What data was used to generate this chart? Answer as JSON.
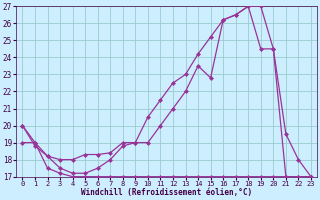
{
  "xlabel": "Windchill (Refroidissement éolien,°C)",
  "background_color": "#cceeff",
  "grid_color": "#99cccc",
  "line_color": "#993399",
  "xlim": [
    -0.5,
    23.5
  ],
  "ylim": [
    17,
    27
  ],
  "xticks": [
    0,
    1,
    2,
    3,
    4,
    5,
    6,
    7,
    8,
    9,
    10,
    11,
    12,
    13,
    14,
    15,
    16,
    17,
    18,
    19,
    20,
    21,
    22,
    23
  ],
  "yticks": [
    17,
    18,
    19,
    20,
    21,
    22,
    23,
    24,
    25,
    26,
    27
  ],
  "series1_x": [
    0,
    1,
    2,
    3,
    4,
    5,
    6,
    7,
    8,
    9,
    10,
    11,
    12,
    13,
    14,
    15,
    16,
    17,
    18,
    19,
    20,
    21,
    22,
    23
  ],
  "series1_y": [
    20.0,
    19.0,
    18.2,
    18.0,
    18.0,
    18.3,
    18.3,
    18.4,
    19.0,
    19.0,
    20.5,
    21.5,
    22.5,
    23.0,
    24.2,
    25.2,
    26.2,
    26.5,
    27.0,
    27.0,
    24.5,
    19.5,
    18.0,
    17.0
  ],
  "series2_x": [
    0,
    1,
    2,
    3,
    4,
    5,
    6,
    7,
    8,
    9,
    10,
    11,
    12,
    13,
    14,
    15,
    16,
    17,
    18,
    19,
    20,
    21,
    22,
    23
  ],
  "series2_y": [
    20.0,
    18.8,
    18.2,
    17.5,
    17.2,
    17.2,
    17.5,
    18.0,
    18.8,
    19.0,
    19.0,
    20.0,
    21.0,
    22.0,
    23.5,
    22.8,
    26.2,
    26.5,
    27.0,
    24.5,
    24.5,
    17.0,
    17.0,
    17.0
  ],
  "series3_x": [
    0,
    1,
    2,
    3,
    4,
    5,
    6,
    7,
    8,
    9,
    10,
    11,
    12,
    13,
    14,
    15,
    16,
    17,
    18,
    19,
    20,
    21,
    22,
    23
  ],
  "series3_y": [
    19.0,
    19.0,
    17.5,
    17.2,
    17.0,
    17.0,
    17.0,
    17.0,
    17.0,
    17.0,
    17.0,
    17.0,
    17.0,
    17.0,
    17.0,
    17.0,
    17.0,
    17.0,
    17.0,
    17.0,
    17.0,
    17.0,
    17.0,
    17.0
  ]
}
